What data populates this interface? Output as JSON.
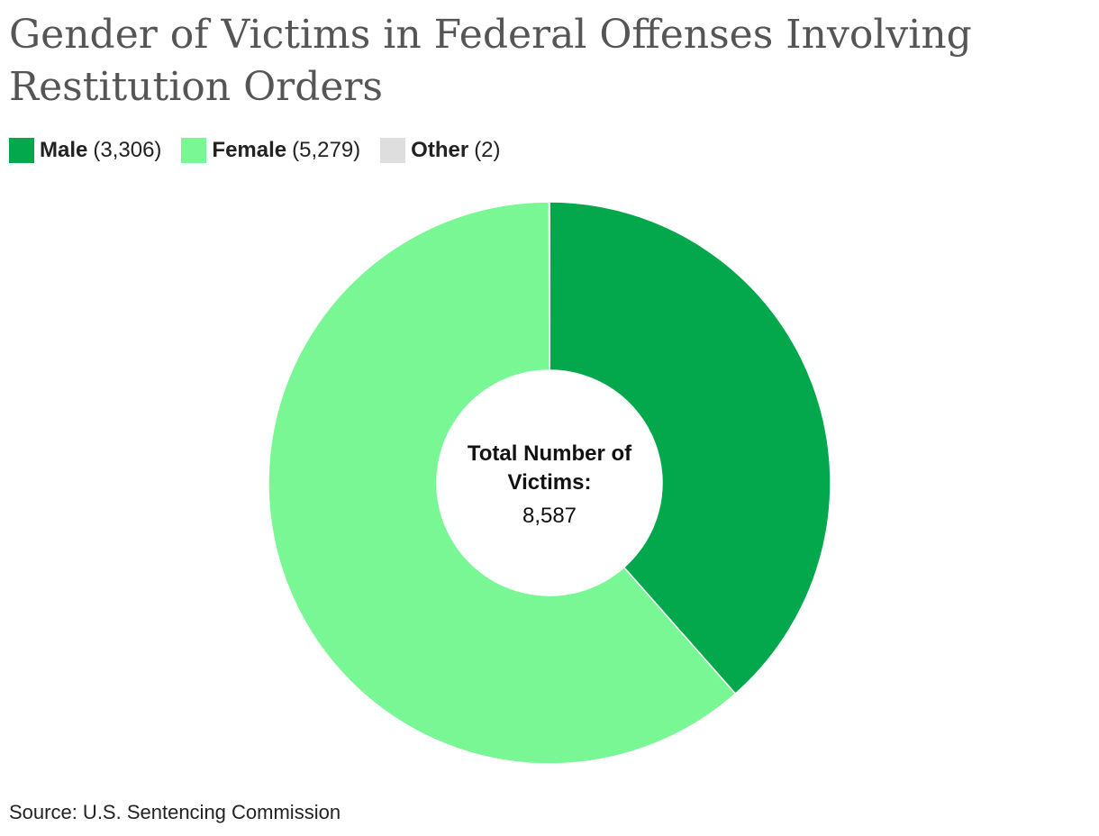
{
  "chart_data": {
    "type": "pie",
    "title": "Gender of Victims in Federal Offenses Involving Restitution Orders",
    "series": [
      {
        "name": "Male",
        "value": 3306,
        "label": "(3,306)",
        "color": "#02a84b"
      },
      {
        "name": "Female",
        "value": 5279,
        "label": "(5,279)",
        "color": "#7af795"
      },
      {
        "name": "Other",
        "value": 2,
        "label": "(2)",
        "color": "#dedede"
      }
    ],
    "center_label": {
      "line1": "Total Number of",
      "line2": "Victims:",
      "value": "8,587"
    },
    "legend_position": "top-left",
    "source": "Source: U.S. Sentencing Commission"
  }
}
